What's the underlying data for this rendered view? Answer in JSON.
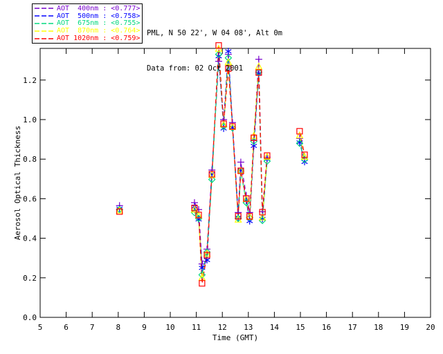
{
  "header": {
    "line1": "PML, N 50 22', W 04 08', Alt 0m",
    "line2": "Data from: 02 Oct 2001"
  },
  "colors": {
    "axis": "#000000",
    "background": "#ffffff",
    "aot400": "#7700CC",
    "aot500": "#0000FF",
    "aot675": "#00D87F",
    "aot870": "#FFFF00",
    "aot1020": "#FF0000"
  },
  "chart_data": {
    "type": "line",
    "title": "",
    "xlabel": "Time (GMT)",
    "ylabel": "Aerosol Optical Thickness",
    "xlim": [
      5,
      20
    ],
    "ylim": [
      0,
      1.36
    ],
    "x_ticks": [
      5,
      6,
      7,
      8,
      9,
      10,
      11,
      12,
      13,
      14,
      15,
      16,
      17,
      18,
      19,
      20
    ],
    "x_tick_labels": [
      "5",
      "6",
      "7",
      "8",
      "9",
      "10",
      "11",
      "12",
      "13",
      "14",
      "15",
      "16",
      "17",
      "18",
      "19",
      "20"
    ],
    "y_ticks": [
      0.0,
      0.2,
      0.4,
      0.6,
      0.8,
      1.0,
      1.2
    ],
    "y_tick_labels": [
      "0.0",
      "0.2",
      "0.4",
      "0.6",
      "0.8",
      "1.0",
      "1.2"
    ],
    "grid": false,
    "legend_position": "top-left",
    "x": [
      8.05,
      10.93,
      11.09,
      11.22,
      11.41,
      11.6,
      11.86,
      12.05,
      12.23,
      12.39,
      12.61,
      12.71,
      12.92,
      13.05,
      13.21,
      13.4,
      13.54,
      13.72,
      14.97,
      15.16
    ],
    "segments": [
      [
        0,
        0
      ],
      [
        1,
        17
      ],
      [
        18,
        19
      ]
    ],
    "line_style": "dashed",
    "series": [
      {
        "name": "AOT  400nm",
        "wavelength_nm": 400,
        "mean": "<0.777>",
        "color": "#7700CC",
        "marker": "plus",
        "values": [
          0.565,
          0.58,
          0.545,
          0.27,
          0.345,
          0.745,
          1.295,
          1.0,
          1.33,
          0.985,
          0.53,
          0.785,
          0.615,
          0.53,
          0.895,
          1.305,
          0.535,
          0.81,
          0.905,
          0.8
        ]
      },
      {
        "name": "AOT  500nm",
        "wavelength_nm": 500,
        "mean": "<0.758>",
        "color": "#0000FF",
        "marker": "asterisk",
        "values": [
          0.55,
          0.56,
          0.495,
          0.25,
          0.29,
          0.725,
          1.32,
          0.955,
          1.345,
          0.96,
          0.505,
          0.745,
          0.59,
          0.487,
          0.867,
          1.232,
          0.498,
          0.8,
          0.885,
          0.786
        ]
      },
      {
        "name": "AOT  675nm",
        "wavelength_nm": 675,
        "mean": "<0.755>",
        "color": "#00D87F",
        "marker": "diamond",
        "values": [
          0.545,
          0.53,
          0.5,
          0.215,
          0.33,
          0.697,
          1.33,
          0.965,
          1.312,
          0.958,
          0.5,
          0.74,
          0.58,
          0.505,
          0.89,
          1.24,
          0.49,
          0.79,
          0.88,
          0.798
        ]
      },
      {
        "name": "AOT  870nm",
        "wavelength_nm": 870,
        "mean": "<0.764>",
        "color": "#FFFF00",
        "marker": "triangle",
        "values": [
          0.54,
          0.545,
          0.515,
          0.2,
          0.322,
          0.72,
          1.358,
          0.975,
          1.29,
          0.962,
          0.494,
          0.742,
          0.598,
          0.508,
          0.918,
          1.268,
          0.505,
          0.812,
          0.92,
          0.812
        ]
      },
      {
        "name": "AOT 1020nm",
        "wavelength_nm": 1020,
        "mean": "<0.759>",
        "color": "#FF0000",
        "marker": "square",
        "values": [
          0.535,
          0.553,
          0.518,
          0.172,
          0.315,
          0.724,
          1.375,
          0.979,
          1.258,
          0.965,
          0.511,
          0.741,
          0.601,
          0.511,
          0.908,
          1.238,
          0.532,
          0.818,
          0.941,
          0.822
        ]
      }
    ]
  }
}
